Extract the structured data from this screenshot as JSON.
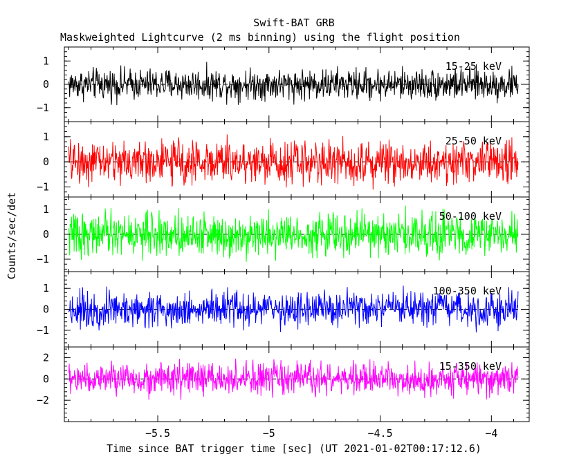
{
  "title": "Swift-BAT GRB",
  "subtitle": "Maskweighted Lightcurve (2 ms binning) using the flight position",
  "xlabel": "Time since BAT trigger time [sec] (UT 2021-01-02T00:17:12.6)",
  "ylabel": "Counts/sec/det",
  "chart_data": [
    {
      "type": "line",
      "name": "15-25 keV",
      "color": "#000000",
      "xlim": [
        -5.92,
        -3.83
      ],
      "ylim": [
        -1.6,
        1.6
      ],
      "yticks": [
        -1,
        0,
        1
      ],
      "tick_labels": [
        "−1",
        "0",
        "1"
      ],
      "x_start": -5.9,
      "x_end": -3.88,
      "bin_width": 0.002,
      "amplitude_sigma": 0.33,
      "dashed_zero_line": true
    },
    {
      "type": "line",
      "name": "25-50 keV",
      "color": "#ff0000",
      "xlim": [
        -5.92,
        -3.83
      ],
      "ylim": [
        -1.4,
        1.6
      ],
      "yticks": [
        -1,
        0,
        1
      ],
      "tick_labels": [
        "−1",
        "0",
        "1"
      ],
      "x_start": -5.9,
      "x_end": -3.88,
      "bin_width": 0.002,
      "amplitude_sigma": 0.42,
      "dashed_zero_line": true
    },
    {
      "type": "line",
      "name": "50-100 keV",
      "color": "#00ff00",
      "xlim": [
        -5.92,
        -3.83
      ],
      "ylim": [
        -1.5,
        1.5
      ],
      "yticks": [
        -1,
        0,
        1
      ],
      "tick_labels": [
        "−1",
        "0",
        "1"
      ],
      "x_start": -5.9,
      "x_end": -3.88,
      "bin_width": 0.002,
      "amplitude_sigma": 0.42,
      "dashed_zero_line": true
    },
    {
      "type": "line",
      "name": "100-350 keV",
      "color": "#0000ff",
      "xlim": [
        -5.92,
        -3.83
      ],
      "ylim": [
        -1.8,
        1.8
      ],
      "yticks": [
        -1,
        0,
        1
      ],
      "tick_labels": [
        "−1",
        "0",
        "1"
      ],
      "x_start": -5.9,
      "x_end": -3.88,
      "bin_width": 0.002,
      "amplitude_sigma": 0.42,
      "dashed_zero_line": true
    },
    {
      "type": "line",
      "name": "15-350 keV",
      "color": "#ff00ff",
      "xlim": [
        -5.92,
        -3.83
      ],
      "ylim": [
        -4,
        3
      ],
      "yticks": [
        -2,
        0,
        2
      ],
      "tick_labels": [
        "−2",
        "0",
        "2"
      ],
      "x_start": -5.9,
      "x_end": -3.88,
      "bin_width": 0.002,
      "amplitude_sigma": 0.75,
      "dashed_zero_line": true
    }
  ],
  "x_axis": {
    "ticks": [
      -5.5,
      -5,
      -4.5,
      -4
    ],
    "tick_labels": [
      "−5.5",
      "−5",
      "−4.5",
      "−4"
    ],
    "minor_step": 0.1
  }
}
